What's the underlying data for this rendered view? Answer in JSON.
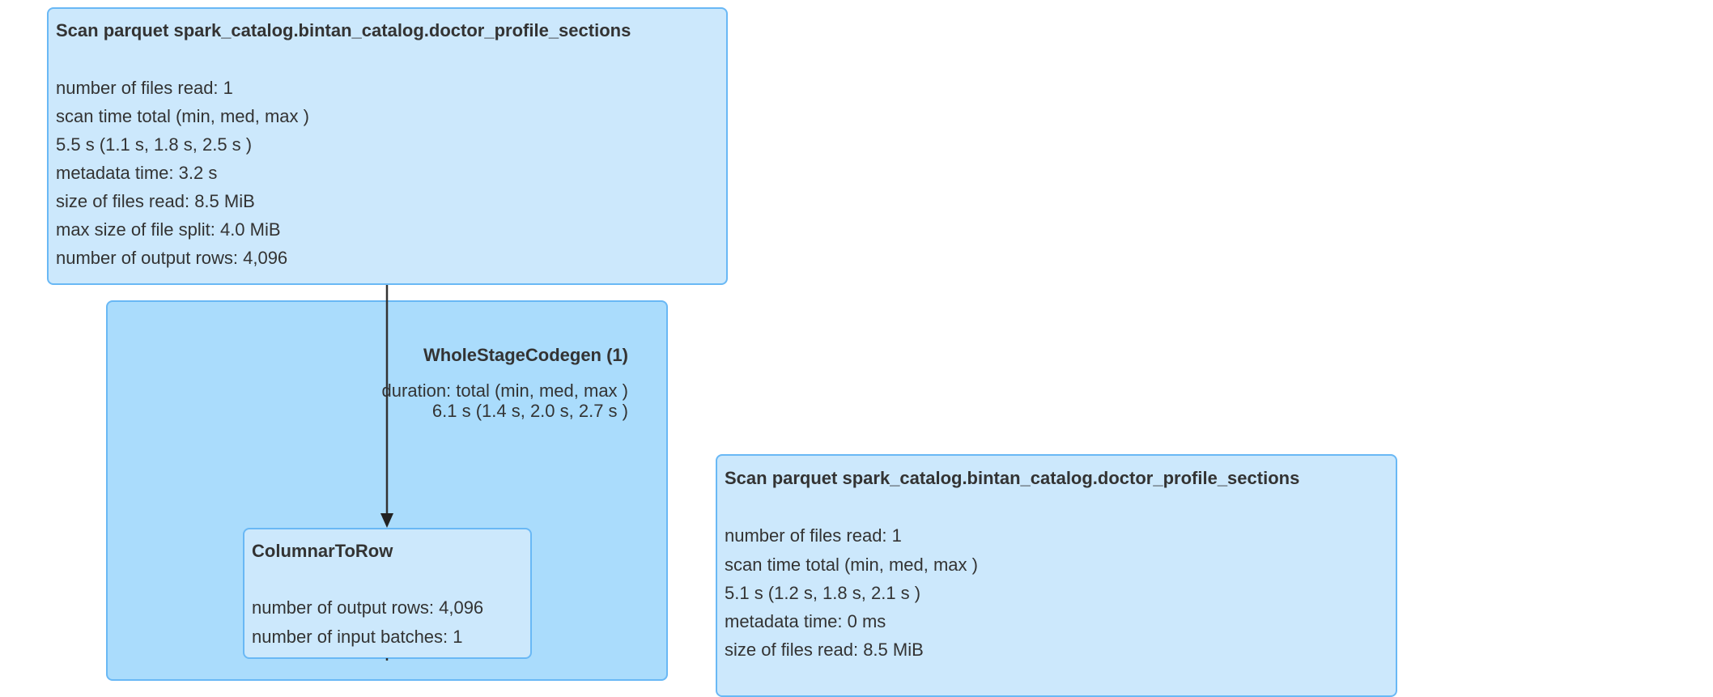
{
  "nodes": {
    "scan1": {
      "title": "Scan parquet spark_catalog.bintan_catalog.doctor_profile_sections",
      "metrics": [
        "number of files read: 1",
        "scan time total (min, med, max )",
        "5.5 s (1.1 s, 1.8 s, 2.5 s )",
        "metadata time: 3.2 s",
        "size of files read: 8.5 MiB",
        "max size of file split: 4.0 MiB",
        "number of output rows: 4,096"
      ]
    },
    "codegen": {
      "title": "WholeStageCodegen (1)",
      "metrics": [
        "duration: total (min, med, max )",
        "6.1 s (1.4 s, 2.0 s, 2.7 s )"
      ]
    },
    "columnar": {
      "title": "ColumnarToRow",
      "metrics": [
        "number of output rows: 4,096",
        "number of input batches: 1"
      ]
    },
    "scan2": {
      "title": "Scan parquet spark_catalog.bintan_catalog.doctor_profile_sections",
      "metrics": [
        "number of files read: 1",
        "scan time total (min, med, max )",
        "5.1 s (1.2 s, 1.8 s, 2.1 s )",
        "metadata time: 0 ms",
        "size of files read: 8.5 MiB"
      ]
    }
  },
  "colors": {
    "node_fill": "#cce8fc",
    "cluster_fill": "#aadcfc",
    "border": "#69b8f5",
    "edge": "#333333"
  }
}
